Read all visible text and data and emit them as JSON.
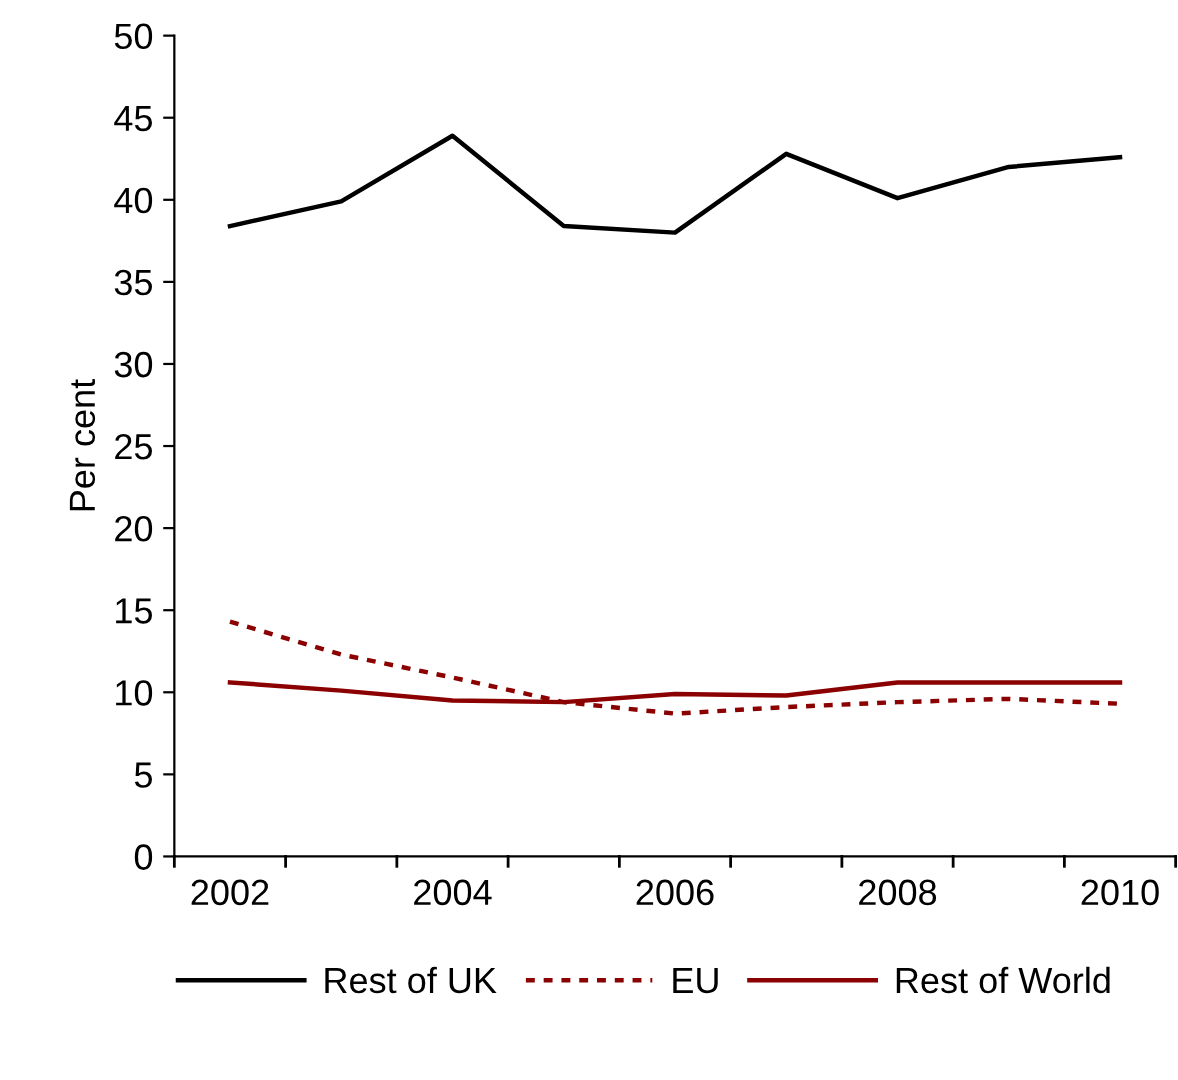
{
  "chart_data": {
    "type": "line",
    "ylabel": "Per cent",
    "categories": [
      "2002",
      null,
      "2004",
      null,
      "2006",
      null,
      "2008",
      null,
      "2010"
    ],
    "series": [
      {
        "name": "Rest of UK",
        "color": "#000000",
        "line_style": "solid",
        "values": [
          38.4,
          39.9,
          43.9,
          38.4,
          38.0,
          42.8,
          40.1,
          42.0,
          42.6
        ]
      },
      {
        "name": "EU",
        "color": "#8b0000",
        "line_style": "dashed",
        "values": [
          14.3,
          12.3,
          10.9,
          9.4,
          8.7,
          9.1,
          9.4,
          9.6,
          9.3
        ]
      },
      {
        "name": "Rest of World",
        "color": "#8b0000",
        "line_style": "solid",
        "values": [
          10.6,
          10.1,
          9.5,
          9.4,
          9.9,
          9.8,
          10.6,
          10.6,
          10.6
        ]
      }
    ],
    "ylim": [
      0,
      50
    ],
    "yticks": [
      0,
      5,
      10,
      15,
      20,
      25,
      30,
      35,
      40,
      45,
      50
    ],
    "grid": false,
    "legend": "bottom",
    "marker": "none"
  }
}
